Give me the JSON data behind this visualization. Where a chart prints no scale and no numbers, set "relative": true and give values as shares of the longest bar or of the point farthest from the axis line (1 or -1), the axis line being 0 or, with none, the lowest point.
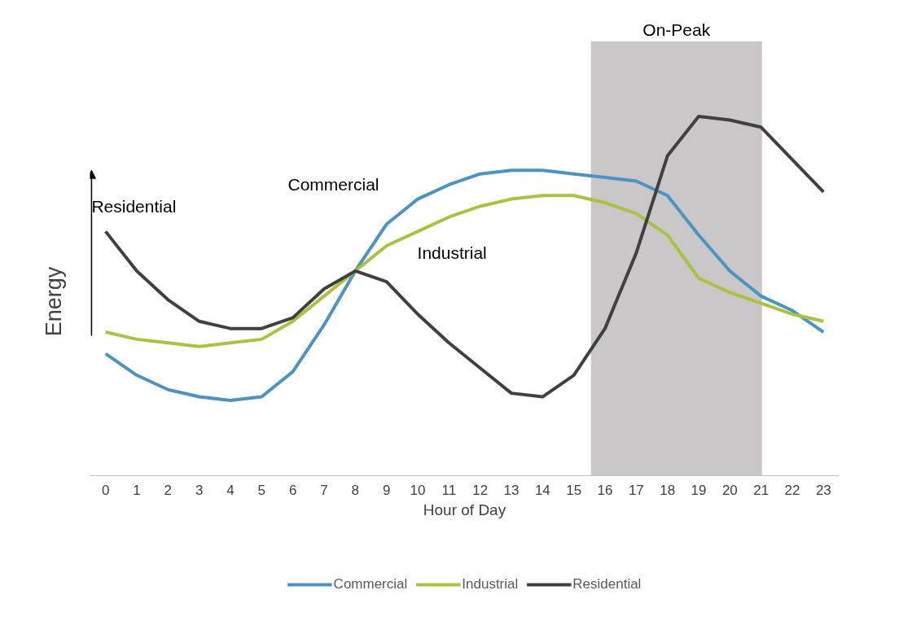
{
  "chart_data": {
    "type": "line",
    "relative": true,
    "xlabel": "Hour of Day",
    "ylabel": "Energy",
    "x": [
      0,
      1,
      2,
      3,
      4,
      5,
      6,
      7,
      8,
      9,
      10,
      11,
      12,
      13,
      14,
      15,
      16,
      17,
      18,
      19,
      20,
      21,
      22,
      23
    ],
    "xlim": [
      -0.5,
      23.5
    ],
    "xticks": [
      0,
      1,
      2,
      3,
      4,
      5,
      6,
      7,
      8,
      9,
      10,
      11,
      12,
      13,
      14,
      15,
      16,
      17,
      18,
      19,
      20,
      21,
      22,
      23
    ],
    "series": [
      {
        "name": "Commercial",
        "color": "#4b93c1",
        "values": [
          0.34,
          0.28,
          0.24,
          0.22,
          0.21,
          0.22,
          0.29,
          0.42,
          0.57,
          0.7,
          0.77,
          0.81,
          0.84,
          0.85,
          0.85,
          0.84,
          0.83,
          0.82,
          0.78,
          0.67,
          0.57,
          0.5,
          0.46,
          0.4
        ]
      },
      {
        "name": "Industrial",
        "color": "#a9c23f",
        "values": [
          0.4,
          0.38,
          0.37,
          0.36,
          0.37,
          0.38,
          0.43,
          0.5,
          0.57,
          0.64,
          0.68,
          0.72,
          0.75,
          0.77,
          0.78,
          0.78,
          0.76,
          0.73,
          0.67,
          0.55,
          0.51,
          0.48,
          0.45,
          0.43
        ]
      },
      {
        "name": "Residential",
        "color": "#404040",
        "values": [
          0.68,
          0.57,
          0.49,
          0.43,
          0.41,
          0.41,
          0.44,
          0.52,
          0.57,
          0.54,
          0.45,
          0.37,
          0.3,
          0.23,
          0.22,
          0.28,
          0.41,
          0.62,
          0.89,
          1.0,
          0.99,
          0.97,
          0.88,
          0.79
        ]
      }
    ],
    "bands": [
      {
        "axis": "x",
        "from": 15.55,
        "to": 21.03,
        "label": "On-Peak",
        "color": "#c9c7c8"
      }
    ],
    "grid": false,
    "legend": "bottom",
    "marker": "none",
    "line_style": "solid"
  }
}
